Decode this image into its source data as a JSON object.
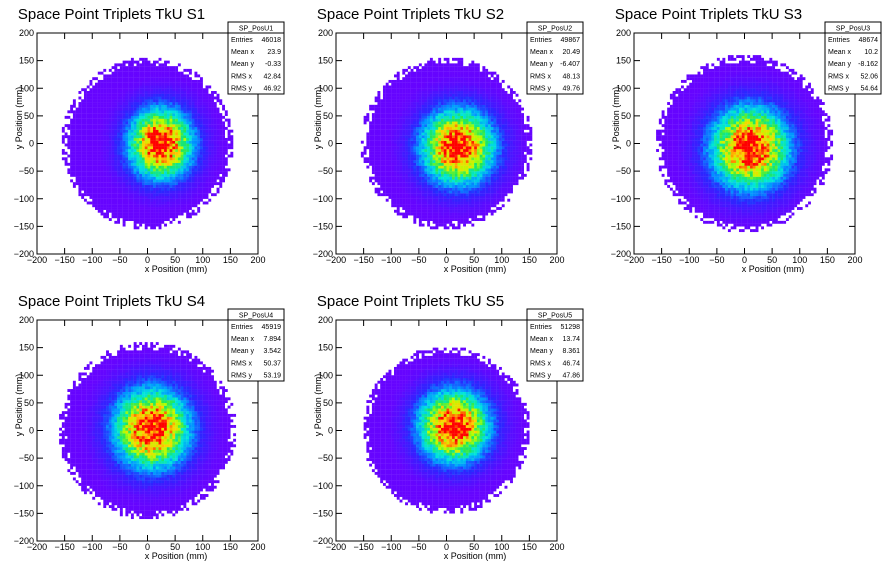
{
  "chart_data": [
    {
      "type": "heatmap",
      "title": "Space Point Triplets TkU S1",
      "xlabel": "x Position (mm)",
      "ylabel": "y Position (mm)",
      "xlim": [
        -200,
        200
      ],
      "ylim": [
        -200,
        200
      ],
      "xticks": [
        -200,
        -150,
        -100,
        -50,
        0,
        50,
        100,
        150,
        200
      ],
      "yticks": [
        -200,
        -150,
        -100,
        -50,
        0,
        50,
        100,
        150,
        200
      ],
      "stats": {
        "name": "SP_PosU1",
        "rows": [
          {
            "label": "Entries",
            "value": "46018"
          },
          {
            "label": "Mean x",
            "value": "23.9"
          },
          {
            "label": "Mean y",
            "value": "-0.33"
          },
          {
            "label": "RMS x",
            "value": "42.84"
          },
          {
            "label": "RMS y",
            "value": "46.92"
          }
        ]
      },
      "center": [
        23.9,
        -0.33
      ],
      "radius": 155
    },
    {
      "type": "heatmap",
      "title": "Space Point Triplets TkU S2",
      "xlabel": "x Position (mm)",
      "ylabel": "y Position (mm)",
      "xlim": [
        -200,
        200
      ],
      "ylim": [
        -200,
        200
      ],
      "xticks": [
        -200,
        -150,
        -100,
        -50,
        0,
        50,
        100,
        150,
        200
      ],
      "yticks": [
        -200,
        -150,
        -100,
        -50,
        0,
        50,
        100,
        150,
        200
      ],
      "stats": {
        "name": "SP_PosU2",
        "rows": [
          {
            "label": "Entries",
            "value": "49867"
          },
          {
            "label": "Mean x",
            "value": "20.49"
          },
          {
            "label": "Mean y",
            "value": "-6.407"
          },
          {
            "label": "RMS x",
            "value": "48.13"
          },
          {
            "label": "RMS y",
            "value": "49.76"
          }
        ]
      },
      "center": [
        20.49,
        -6.407
      ],
      "radius": 155
    },
    {
      "type": "heatmap",
      "title": "Space Point Triplets TkU S3",
      "xlabel": "x Position (mm)",
      "ylabel": "y Position (mm)",
      "xlim": [
        -200,
        200
      ],
      "ylim": [
        -200,
        200
      ],
      "xticks": [
        -200,
        -150,
        -100,
        -50,
        0,
        50,
        100,
        150,
        200
      ],
      "yticks": [
        -200,
        -150,
        -100,
        -50,
        0,
        50,
        100,
        150,
        200
      ],
      "stats": {
        "name": "SP_PosU3",
        "rows": [
          {
            "label": "Entries",
            "value": "48674"
          },
          {
            "label": "Mean x",
            "value": "10.2"
          },
          {
            "label": "Mean y",
            "value": "-8.162"
          },
          {
            "label": "RMS x",
            "value": "52.06"
          },
          {
            "label": "RMS y",
            "value": "54.64"
          }
        ]
      },
      "center": [
        10.2,
        -8.162
      ],
      "radius": 160
    },
    {
      "type": "heatmap",
      "title": "Space Point Triplets TkU S4",
      "xlabel": "x Position (mm)",
      "ylabel": "y Position (mm)",
      "xlim": [
        -200,
        200
      ],
      "ylim": [
        -200,
        200
      ],
      "xticks": [
        -200,
        -150,
        -100,
        -50,
        0,
        50,
        100,
        150,
        200
      ],
      "yticks": [
        -200,
        -150,
        -100,
        -50,
        0,
        50,
        100,
        150,
        200
      ],
      "stats": {
        "name": "SP_PosU4",
        "rows": [
          {
            "label": "Entries",
            "value": "45919"
          },
          {
            "label": "Mean x",
            "value": "7.894"
          },
          {
            "label": "Mean y",
            "value": "3.542"
          },
          {
            "label": "RMS x",
            "value": "50.37"
          },
          {
            "label": "RMS y",
            "value": "53.19"
          }
        ]
      },
      "center": [
        7.894,
        3.542
      ],
      "radius": 160
    },
    {
      "type": "heatmap",
      "title": "Space Point Triplets TkU S5",
      "xlabel": "x Position (mm)",
      "ylabel": "y Position (mm)",
      "xlim": [
        -200,
        200
      ],
      "ylim": [
        -200,
        200
      ],
      "xticks": [
        -200,
        -150,
        -100,
        -50,
        0,
        50,
        100,
        150,
        200
      ],
      "yticks": [
        -200,
        -150,
        -100,
        -50,
        0,
        50,
        100,
        150,
        200
      ],
      "stats": {
        "name": "SP_PosU5",
        "rows": [
          {
            "label": "Entries",
            "value": "51298"
          },
          {
            "label": "Mean x",
            "value": "13.74"
          },
          {
            "label": "Mean y",
            "value": "8.361"
          },
          {
            "label": "RMS x",
            "value": "46.74"
          },
          {
            "label": "RMS y",
            "value": "47.86"
          }
        ]
      },
      "center": [
        13.74,
        8.361
      ],
      "radius": 152
    }
  ]
}
